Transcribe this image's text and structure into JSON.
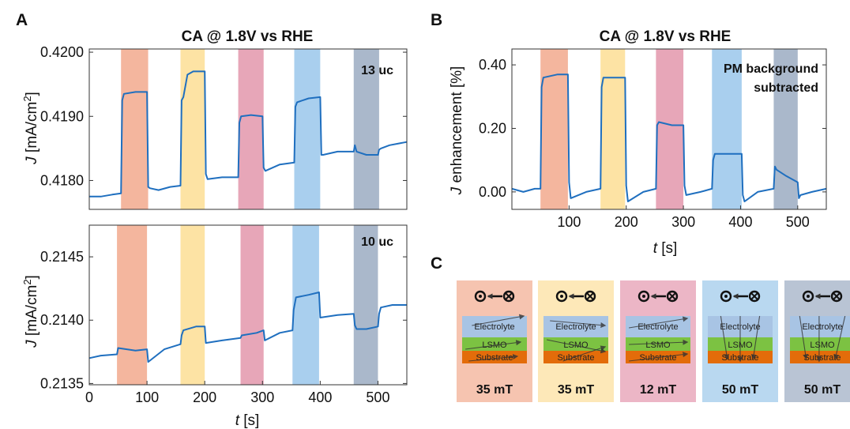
{
  "panel_letters": {
    "a": "A",
    "b": "B",
    "c": "C"
  },
  "colors": {
    "trace": "#1f6fbf",
    "bands": [
      "#f4b69e",
      "#fde3a4",
      "#e7a6b8",
      "#a9cfee",
      "#aab8cb"
    ],
    "cards": [
      "#f6c4b0",
      "#fde8b8",
      "#ecb6c6",
      "#b9d8f0",
      "#b9c4d4"
    ],
    "electrolyte": "#a8c4e4",
    "lsmo": "#7cc242",
    "substrate": "#e36c0a"
  },
  "chart_data": [
    {
      "id": "A-top",
      "type": "line",
      "title": "CA @ 1.8V vs RHE",
      "annotation": "13 uc",
      "ylabel_italic": "J",
      "ylabel_rest": " [mA/cm",
      "ylabel_sup": "2",
      "ylabel_end": "]",
      "xlim": [
        0,
        550
      ],
      "ylim": [
        0.41755,
        0.42005
      ],
      "yticks": [
        0.418,
        0.419,
        0.42
      ],
      "ytick_labels": [
        "0.4180",
        "0.4190",
        "0.4200"
      ],
      "bands": [
        [
          55,
          102
        ],
        [
          158,
          200
        ],
        [
          258,
          302
        ],
        [
          355,
          400
        ],
        [
          458,
          502
        ]
      ],
      "series": [
        {
          "x": [
            0,
            20,
            40,
            55,
            57,
            60,
            80,
            100,
            102,
            105,
            120,
            140,
            158,
            160,
            163,
            170,
            180,
            200,
            202,
            205,
            230,
            258,
            260,
            263,
            280,
            300,
            302,
            305,
            330,
            355,
            357,
            360,
            380,
            400,
            402,
            405,
            430,
            458,
            460,
            463,
            480,
            500,
            502,
            505,
            520,
            550
          ],
          "y": [
            0.41775,
            0.41775,
            0.41778,
            0.4178,
            0.41925,
            0.41935,
            0.41938,
            0.41938,
            0.4179,
            0.41788,
            0.41785,
            0.4179,
            0.41792,
            0.41925,
            0.4193,
            0.41965,
            0.4197,
            0.4197,
            0.4181,
            0.41802,
            0.41805,
            0.41805,
            0.4189,
            0.419,
            0.41902,
            0.419,
            0.4182,
            0.41815,
            0.41825,
            0.41828,
            0.41915,
            0.41922,
            0.41928,
            0.4193,
            0.4184,
            0.4184,
            0.41845,
            0.41845,
            0.41855,
            0.41845,
            0.4184,
            0.4184,
            0.41848,
            0.4185,
            0.41855,
            0.4186
          ]
        }
      ]
    },
    {
      "id": "A-bottom",
      "type": "line",
      "annotation": "10 uc",
      "ylabel_italic": "J",
      "ylabel_rest": " [mA/cm",
      "ylabel_sup": "2",
      "ylabel_end": "]",
      "xlabel_italic": "t",
      "xlabel_rest": " [s]",
      "xlim": [
        0,
        550
      ],
      "ylim": [
        0.21349,
        0.21475
      ],
      "xticks": [
        0,
        100,
        200,
        300,
        400,
        500
      ],
      "xtick_labels": [
        "0",
        "100",
        "200",
        "300",
        "400",
        "500"
      ],
      "yticks": [
        0.2135,
        0.214,
        0.2145
      ],
      "ytick_labels": [
        "0.2135",
        "0.2140",
        "0.2145"
      ],
      "bands": [
        [
          48,
          100
        ],
        [
          158,
          200
        ],
        [
          262,
          302
        ],
        [
          352,
          398
        ],
        [
          458,
          500
        ]
      ],
      "series": [
        {
          "x": [
            0,
            20,
            48,
            50,
            80,
            100,
            102,
            130,
            158,
            160,
            163,
            185,
            200,
            202,
            230,
            262,
            264,
            290,
            302,
            304,
            330,
            352,
            354,
            358,
            380,
            398,
            400,
            430,
            458,
            460,
            463,
            480,
            500,
            502,
            505,
            525,
            550
          ],
          "y": [
            0.2137,
            0.21372,
            0.21373,
            0.21378,
            0.21376,
            0.21377,
            0.21367,
            0.21377,
            0.21381,
            0.21388,
            0.21392,
            0.21395,
            0.21395,
            0.21382,
            0.21384,
            0.21386,
            0.21388,
            0.2139,
            0.21392,
            0.21384,
            0.2139,
            0.21392,
            0.21408,
            0.21418,
            0.2142,
            0.21422,
            0.21402,
            0.21404,
            0.21405,
            0.21396,
            0.21393,
            0.21393,
            0.21395,
            0.21405,
            0.2141,
            0.21412,
            0.21412
          ]
        }
      ]
    },
    {
      "id": "B",
      "type": "line",
      "title": "CA @ 1.8V vs RHE",
      "annotation_lines": [
        "PM background",
        "subtracted"
      ],
      "ylabel_italic": "J",
      "ylabel_rest": " enhancement [%]",
      "xlabel_italic": "t",
      "xlabel_rest": " [s]",
      "xlim": [
        0,
        550
      ],
      "ylim": [
        -0.055,
        0.45
      ],
      "xticks": [
        100,
        200,
        300,
        400,
        500
      ],
      "xtick_labels": [
        "100",
        "200",
        "300",
        "400",
        "500"
      ],
      "yticks": [
        0,
        0.2,
        0.4
      ],
      "ytick_labels": [
        "0.00",
        "0.20",
        "0.40"
      ],
      "bands": [
        [
          50,
          98
        ],
        [
          155,
          198
        ],
        [
          252,
          300
        ],
        [
          350,
          402
        ],
        [
          458,
          500
        ]
      ],
      "series": [
        {
          "x": [
            0,
            20,
            40,
            50,
            52,
            55,
            80,
            98,
            100,
            103,
            130,
            155,
            157,
            160,
            165,
            185,
            198,
            200,
            203,
            230,
            252,
            254,
            257,
            280,
            300,
            302,
            305,
            330,
            350,
            352,
            355,
            380,
            402,
            404,
            407,
            430,
            458,
            460,
            463,
            480,
            500,
            502,
            505,
            525,
            550
          ],
          "y": [
            0.01,
            0.0,
            0.01,
            0.01,
            0.33,
            0.36,
            0.37,
            0.37,
            0.03,
            -0.02,
            0.0,
            0.01,
            0.33,
            0.36,
            0.36,
            0.36,
            0.36,
            0.02,
            -0.03,
            0.0,
            0.01,
            0.21,
            0.22,
            0.21,
            0.21,
            0.02,
            -0.01,
            0.0,
            0.01,
            0.1,
            0.12,
            0.12,
            0.12,
            -0.01,
            -0.03,
            0.0,
            0.01,
            0.08,
            0.07,
            0.05,
            0.03,
            -0.02,
            -0.01,
            0.0,
            0.01
          ]
        }
      ]
    }
  ],
  "panel_c": {
    "cards": [
      {
        "field": "35 mT"
      },
      {
        "field": "35 mT"
      },
      {
        "field": "12 mT"
      },
      {
        "field": "50 mT"
      },
      {
        "field": "50 mT"
      }
    ],
    "layers": {
      "electrolyte": "Electrolyte",
      "lsmo": "LSMO",
      "substrate": "Substrate"
    }
  }
}
